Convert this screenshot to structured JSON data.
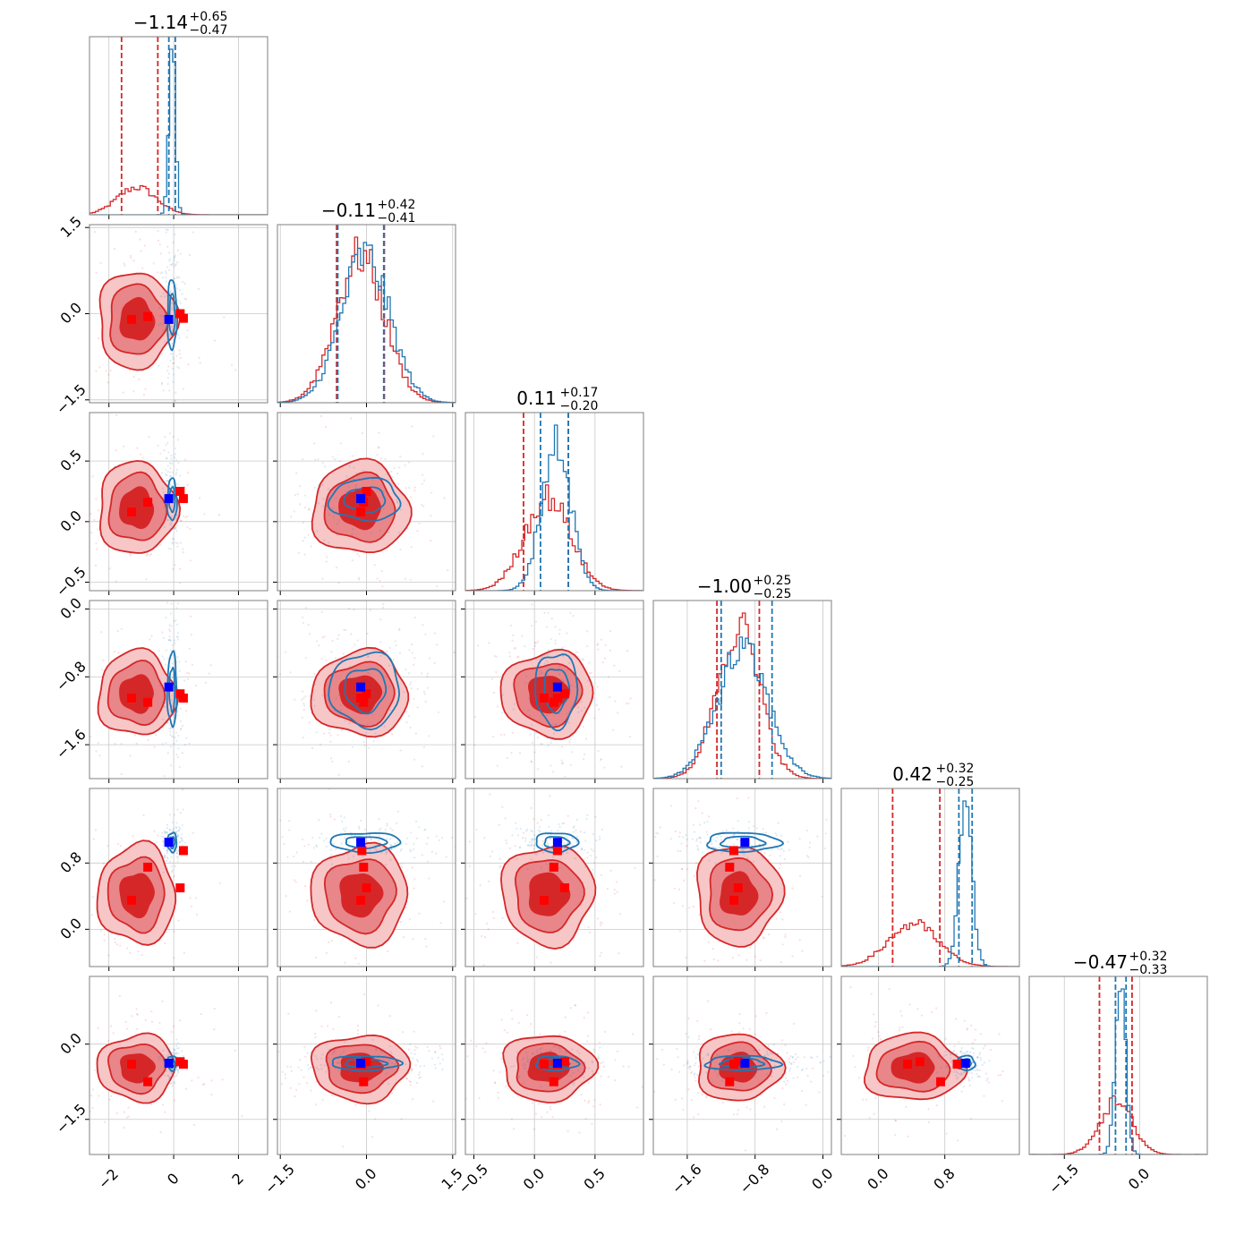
{
  "chart_data": {
    "type": "corner",
    "n_params": 6,
    "grid": true,
    "titles": [
      {
        "median": "−1.14",
        "plus": "+0.65",
        "minus": "−0.47"
      },
      {
        "median": "−0.11",
        "plus": "+0.42",
        "minus": "−0.41"
      },
      {
        "median": "0.11",
        "plus": "+0.17",
        "minus": "−0.20"
      },
      {
        "median": "−1.00",
        "plus": "+0.25",
        "minus": "−0.25"
      },
      {
        "median": "0.42",
        "plus": "+0.32",
        "minus": "−0.25"
      },
      {
        "median": "−0.47",
        "plus": "+0.32",
        "minus": "−0.33"
      }
    ],
    "ranges": [
      [
        -2.6,
        2.9
      ],
      [
        -1.55,
        1.55
      ],
      [
        -0.57,
        0.9
      ],
      [
        -2.0,
        0.1
      ],
      [
        -0.45,
        1.7
      ],
      [
        -2.2,
        1.35
      ]
    ],
    "ticks": [
      {
        "values": [
          -2,
          0,
          2
        ],
        "labels": [
          "−2",
          "0",
          "2"
        ]
      },
      {
        "values": [
          -1.5,
          0,
          1.5
        ],
        "labels": [
          "−1.5",
          "0.0",
          "1.5"
        ]
      },
      {
        "values": [
          -0.5,
          0,
          0.5
        ],
        "labels": [
          "−0.5",
          "0.0",
          "0.5"
        ]
      },
      {
        "values": [
          -1.6,
          -0.8,
          0
        ],
        "labels": [
          "−1.6",
          "−0.8",
          "0.0"
        ]
      },
      {
        "values": [
          0,
          0.8
        ],
        "labels": [
          "0.0",
          "0.8"
        ]
      },
      {
        "values": [
          -1.5,
          0
        ],
        "labels": [
          "−1.5",
          "0.0"
        ]
      }
    ],
    "series": [
      {
        "color": "#d62728",
        "means": [
          -1.14,
          -0.11,
          0.11,
          -1.0,
          0.42,
          -0.47
        ],
        "sigmas": [
          0.6,
          0.42,
          0.19,
          0.25,
          0.3,
          0.33
        ],
        "quantiles": [
          [
            -1.61,
            -0.49
          ],
          [
            -0.52,
            0.31
          ],
          [
            -0.09,
            0.28
          ],
          [
            -1.25,
            -0.75
          ],
          [
            0.17,
            0.74
          ],
          [
            -0.8,
            -0.15
          ]
        ],
        "filled": true
      },
      {
        "color": "#1f77b4",
        "means": [
          -0.05,
          -0.02,
          0.18,
          -0.95,
          1.05,
          -0.38
        ],
        "sigmas": [
          0.1,
          0.42,
          0.12,
          0.3,
          0.08,
          0.1
        ],
        "quantiles": [
          [
            -0.15,
            0.05
          ],
          [
            -0.5,
            0.3
          ],
          [
            0.05,
            0.28
          ],
          [
            -1.2,
            -0.6
          ],
          [
            0.97,
            1.13
          ],
          [
            -0.48,
            -0.27
          ]
        ],
        "filled": false
      }
    ],
    "markers": {
      "red": [
        [
          -1.3,
          -0.1,
          0.08,
          -1.05,
          0.35,
          -0.4
        ],
        [
          -0.8,
          -0.05,
          0.16,
          -1.1,
          0.75,
          -0.75
        ],
        [
          0.2,
          0.0,
          0.25,
          -1.0,
          0.5,
          -0.35
        ],
        [
          0.3,
          -0.08,
          0.19,
          -1.05,
          0.95,
          -0.4
        ]
      ],
      "blue": [
        [
          -0.15,
          -0.1,
          0.19,
          -0.92,
          1.05,
          -0.38
        ]
      ]
    }
  }
}
